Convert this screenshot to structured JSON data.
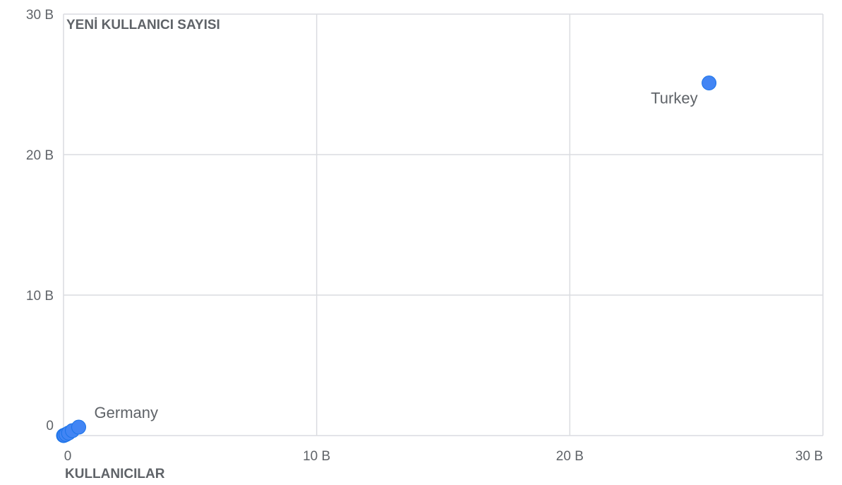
{
  "chart_data": {
    "type": "scatter",
    "title": "",
    "xlabel": "KULLANICILAR",
    "ylabel": "YENİ KULLANICI SAYISI",
    "xlim": [
      0,
      30000000000
    ],
    "ylim": [
      0,
      30000000000
    ],
    "x_ticks": [
      {
        "value": 0,
        "label": "0"
      },
      {
        "value": 10000000000,
        "label": "10 B"
      },
      {
        "value": 20000000000,
        "label": "20 B"
      },
      {
        "value": 30000000000,
        "label": "30 B"
      }
    ],
    "y_ticks": [
      {
        "value": 0,
        "label": "0"
      },
      {
        "value": 10000000000,
        "label": "10 B"
      },
      {
        "value": 20000000000,
        "label": "20 B"
      },
      {
        "value": 30000000000,
        "label": "30 B"
      }
    ],
    "grid": true,
    "point_color": "#4285f4",
    "points": [
      {
        "label": "Turkey",
        "x": 25500000000,
        "y": 25100000000,
        "show_label": true,
        "label_side": "left"
      },
      {
        "label": "Germany",
        "x": 600000000,
        "y": 600000000,
        "show_label": true,
        "label_side": "right"
      },
      {
        "label": "",
        "x": 350000000,
        "y": 350000000,
        "show_label": false
      },
      {
        "label": "",
        "x": 200000000,
        "y": 180000000,
        "show_label": false
      },
      {
        "label": "",
        "x": 100000000,
        "y": 80000000,
        "show_label": false
      },
      {
        "label": "",
        "x": 30000000,
        "y": 20000000,
        "show_label": false
      },
      {
        "label": "",
        "x": 0,
        "y": 0,
        "show_label": false
      }
    ]
  }
}
